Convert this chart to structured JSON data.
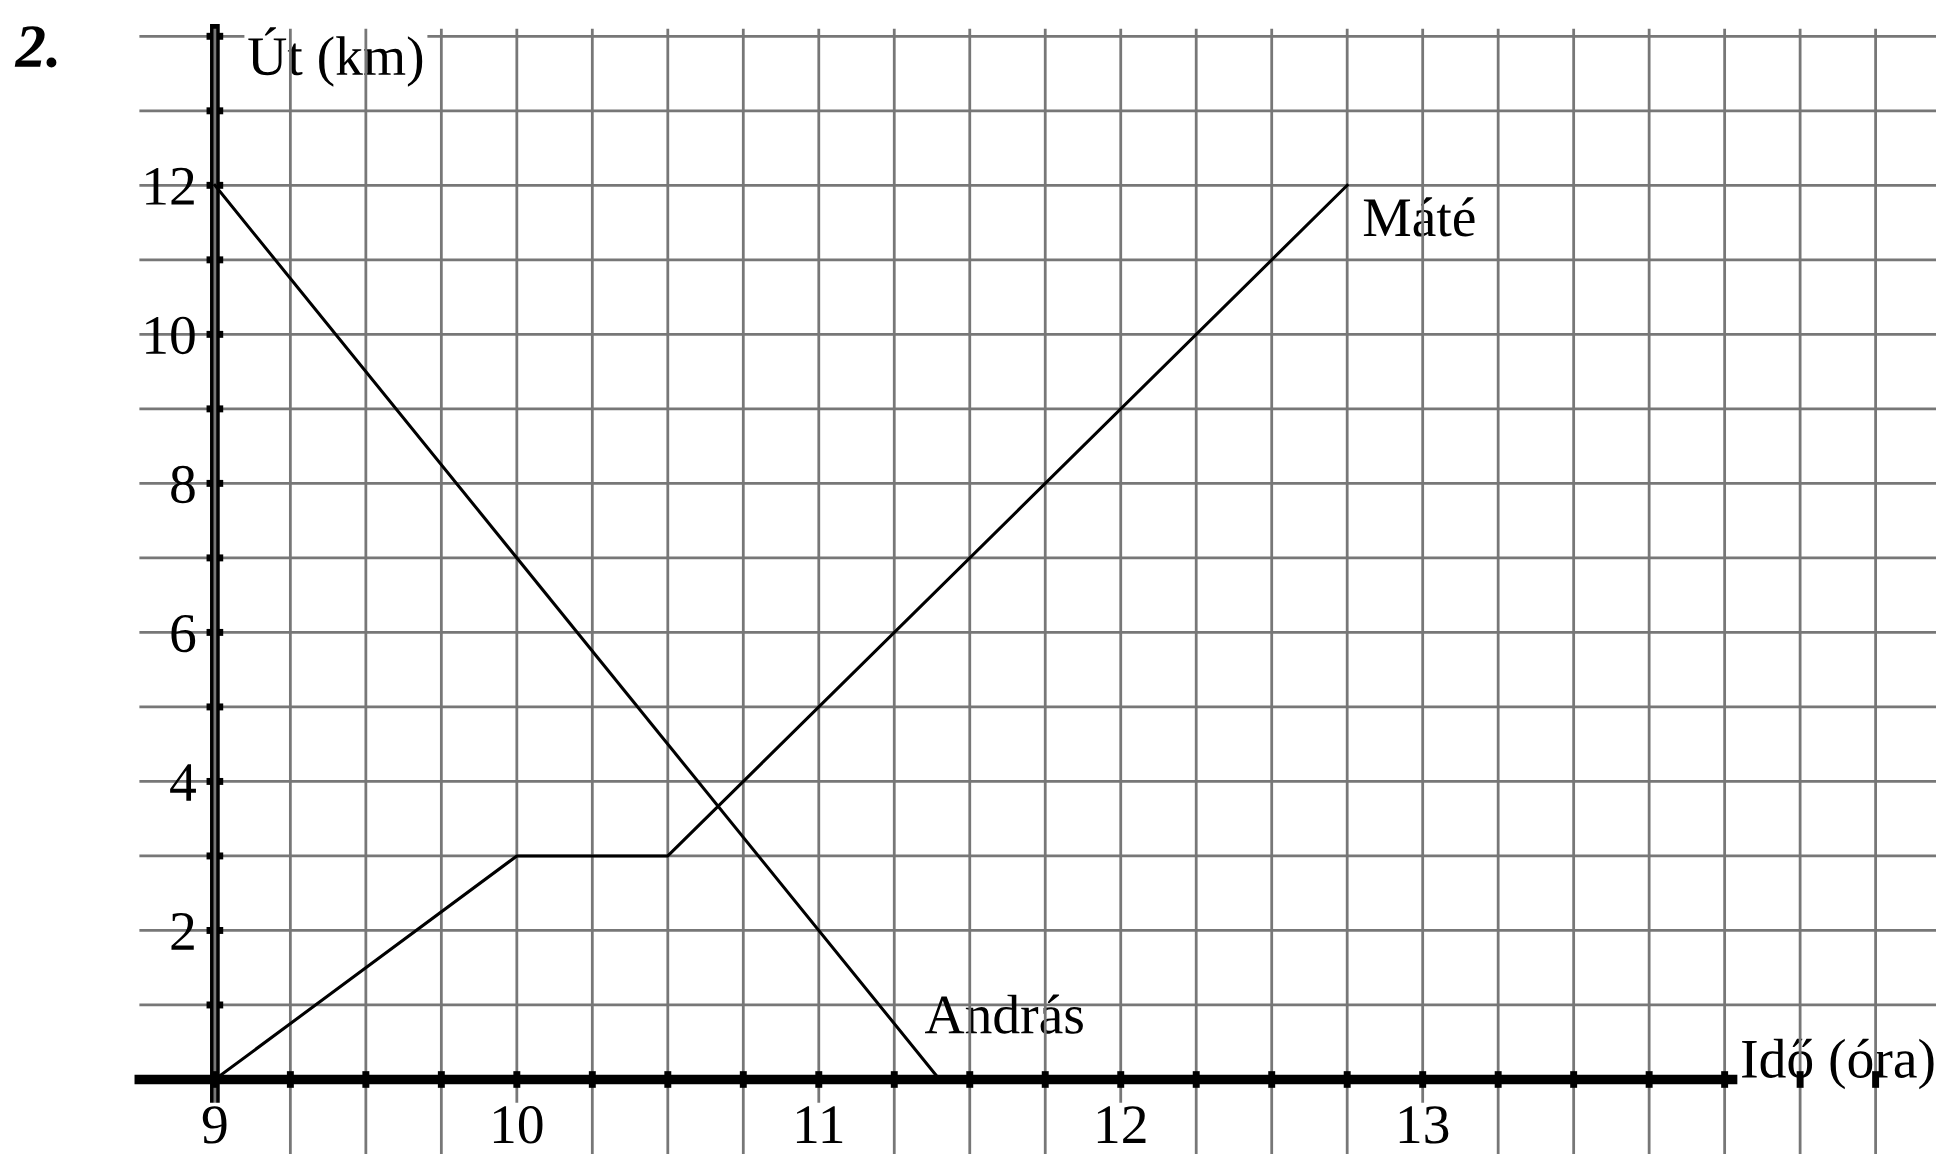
{
  "chart_data": {
    "type": "line",
    "xlabel": "Idő (óra)",
    "ylabel": "Út (km)",
    "annotations": [
      "2."
    ],
    "series": [
      {
        "name": "András",
        "color": "#000000",
        "x": [
          9,
          11.4
        ],
        "values": [
          12,
          0
        ]
      },
      {
        "name": "Máté",
        "color": "#000000",
        "x": [
          9,
          10,
          10.5,
          12.75
        ],
        "values": [
          0,
          3,
          3,
          12
        ]
      }
    ],
    "xlim": [
      8.75,
      14.7
    ],
    "ylim": [
      -1,
      14.1
    ],
    "xticks": [
      {
        "value": 9,
        "label": "9"
      },
      {
        "value": 9.25,
        "label": null
      },
      {
        "value": 9.5,
        "label": null
      },
      {
        "value": 9.75,
        "label": null
      },
      {
        "value": 10,
        "label": "10"
      },
      {
        "value": 10.25,
        "label": null
      },
      {
        "value": 10.5,
        "label": null
      },
      {
        "value": 10.75,
        "label": null
      },
      {
        "value": 11,
        "label": "11"
      },
      {
        "value": 11.25,
        "label": null
      },
      {
        "value": 11.5,
        "label": null
      },
      {
        "value": 11.75,
        "label": null
      },
      {
        "value": 12,
        "label": "12"
      },
      {
        "value": 12.25,
        "label": null
      },
      {
        "value": 12.5,
        "label": null
      },
      {
        "value": 12.75,
        "label": null
      },
      {
        "value": 13,
        "label": "13"
      },
      {
        "value": 13.25,
        "label": null
      },
      {
        "value": 13.5,
        "label": null
      },
      {
        "value": 13.75,
        "label": null
      },
      {
        "value": 14,
        "label": null
      },
      {
        "value": 14.25,
        "label": null
      },
      {
        "value": 14.5,
        "label": null
      }
    ],
    "yticks": [
      {
        "value": 0,
        "label": null
      },
      {
        "value": 1,
        "label": null
      },
      2,
      {
        "value": 3,
        "label": null
      },
      4,
      {
        "value": 5,
        "label": null
      },
      6,
      {
        "value": 7,
        "label": null
      },
      8,
      {
        "value": 9,
        "label": null
      },
      10,
      {
        "value": 11,
        "label": null
      },
      12,
      {
        "value": 13,
        "label": null
      },
      {
        "value": 14,
        "label": null
      }
    ],
    "grid": true,
    "legend": false,
    "marker": "none",
    "line_style": "solid"
  }
}
